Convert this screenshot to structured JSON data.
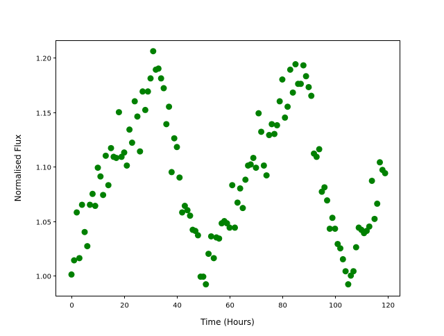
{
  "chart_data": {
    "type": "scatter",
    "title": "",
    "xlabel": "Time (Hours)",
    "ylabel": "Normalised Flux",
    "xlim": [
      -5.8,
      124.5
    ],
    "ylim": [
      0.9815,
      1.216
    ],
    "xticks": [
      0,
      20,
      40,
      60,
      80,
      100,
      120
    ],
    "xtick_labels": [
      "0",
      "20",
      "40",
      "60",
      "80",
      "100",
      "120"
    ],
    "yticks": [
      1.0,
      1.05,
      1.1,
      1.15,
      1.2
    ],
    "ytick_labels": [
      "1.00",
      "1.05",
      "1.10",
      "1.15",
      "1.20"
    ],
    "grid": false,
    "marker_color": "#008000",
    "x": [
      0,
      1,
      2,
      3,
      4,
      5,
      6,
      7,
      8,
      9,
      10,
      11,
      12,
      13,
      14,
      15,
      16,
      17,
      18,
      19,
      20,
      21,
      22,
      23,
      24,
      25,
      26,
      27,
      28,
      29,
      30,
      31,
      32,
      33,
      34,
      35,
      36,
      37,
      38,
      39,
      40,
      41,
      42,
      43,
      44,
      45,
      46,
      47,
      48,
      49,
      50,
      51,
      52,
      53,
      54,
      55,
      56,
      57,
      58,
      59,
      60,
      61,
      62,
      63,
      64,
      65,
      66,
      67,
      68,
      69,
      70,
      71,
      72,
      73,
      74,
      75,
      76,
      77,
      78,
      79,
      80,
      81,
      82,
      83,
      84,
      85,
      86,
      87,
      88,
      89,
      90,
      91,
      92,
      93,
      94,
      95,
      96,
      97,
      98,
      99,
      100,
      101,
      102,
      103,
      104,
      105,
      106,
      107,
      108,
      109,
      110,
      111,
      112,
      113,
      114,
      115,
      116,
      117,
      118,
      119
    ],
    "y": [
      1.001,
      1.014,
      1.058,
      1.016,
      1.065,
      1.04,
      1.027,
      1.065,
      1.075,
      1.064,
      1.099,
      1.091,
      1.074,
      1.11,
      1.083,
      1.117,
      1.109,
      1.108,
      1.15,
      1.109,
      1.113,
      1.101,
      1.134,
      1.122,
      1.16,
      1.146,
      1.114,
      1.169,
      1.152,
      1.169,
      1.181,
      1.206,
      1.189,
      1.19,
      1.181,
      1.172,
      1.139,
      1.155,
      1.095,
      1.126,
      1.118,
      1.09,
      1.058,
      1.064,
      1.06,
      1.055,
      1.042,
      1.041,
      1.037,
      0.999,
      0.999,
      0.992,
      1.02,
      1.036,
      1.016,
      1.035,
      1.034,
      1.048,
      1.05,
      1.048,
      1.044,
      1.083,
      1.044,
      1.067,
      1.08,
      1.062,
      1.088,
      1.101,
      1.102,
      1.108,
      1.099,
      1.149,
      1.132,
      1.101,
      1.092,
      1.129,
      1.139,
      1.13,
      1.138,
      1.16,
      1.18,
      1.145,
      1.155,
      1.189,
      1.168,
      1.194,
      1.176,
      1.176,
      1.193,
      1.183,
      1.173,
      1.165,
      1.112,
      1.109,
      1.116,
      1.077,
      1.081,
      1.069,
      1.043,
      1.053,
      1.043,
      1.029,
      1.025,
      1.015,
      1.004,
      0.992,
      1.0,
      1.004,
      1.026,
      1.044,
      1.042,
      1.039,
      1.041,
      1.045,
      1.087,
      1.052,
      1.066,
      1.104,
      1.097,
      1.094
    ]
  }
}
